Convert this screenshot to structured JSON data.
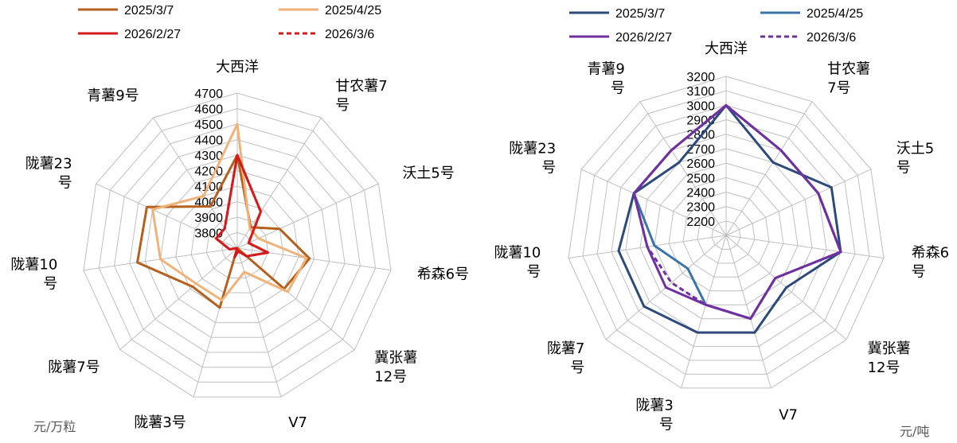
{
  "chart_data": [
    {
      "type": "radar",
      "unit_label": "元/万粒",
      "categories": [
        [
          "大西洋"
        ],
        [
          "甘农薯7",
          "号"
        ],
        [
          "沃土5号"
        ],
        [
          "希森6号"
        ],
        [
          "冀张薯",
          "12号"
        ],
        [
          "V7"
        ],
        [
          "陇薯3号"
        ],
        [
          "陇薯7号"
        ],
        [
          "陇薯10",
          "号"
        ],
        [
          "陇薯23",
          "号"
        ],
        [
          "青薯9号"
        ]
      ],
      "rlim": [
        3700,
        4700
      ],
      "ticks": [
        3800,
        3900,
        4000,
        4100,
        4200,
        4300,
        4400,
        4500,
        4600,
        4700
      ],
      "series": [
        {
          "name": "2025/3/7",
          "color": "#b5601c",
          "dash": false,
          "values": [
            4300,
            3860,
            4000,
            4170,
            4100,
            3700,
            4100,
            4080,
            4350,
            4340,
            4020
          ]
        },
        {
          "name": "2025/4/25",
          "color": "#f1b27a",
          "dash": false,
          "values": [
            4500,
            3850,
            3850,
            4150,
            4130,
            3860,
            4050,
            4050,
            4200,
            4300,
            4100
          ]
        },
        {
          "name": "2026/2/27",
          "color": "#d41a1a",
          "dash": false,
          "values": [
            4300,
            3980,
            3780,
            3900,
            3780,
            3720,
            3760,
            3700,
            3750,
            3850,
            3850
          ]
        },
        {
          "name": "2026/3/6",
          "color": "#d41a1a",
          "dash": true,
          "values": [
            4300,
            3980,
            3780,
            3900,
            3780,
            3720,
            3760,
            3700,
            3750,
            3850,
            3850
          ]
        }
      ]
    },
    {
      "type": "radar",
      "unit_label": "元/吨",
      "categories": [
        [
          "大西洋"
        ],
        [
          "甘农薯",
          "7号"
        ],
        [
          "沃土5",
          "号"
        ],
        [
          "希森6",
          "号"
        ],
        [
          "冀张薯",
          "12号"
        ],
        [
          "V7"
        ],
        [
          "陇薯3",
          "号"
        ],
        [
          "陇薯7",
          "号"
        ],
        [
          "陇薯10",
          "号"
        ],
        [
          "陇薯23",
          "号"
        ],
        [
          "青薯9",
          "号"
        ]
      ],
      "rlim": [
        2100,
        3200
      ],
      "ticks": [
        2200,
        2300,
        2400,
        2500,
        2600,
        2700,
        2800,
        2900,
        3000,
        3100,
        3200
      ],
      "series": [
        {
          "name": "2025/3/7",
          "color": "#2c4a7c",
          "dash": false,
          "values": [
            3000,
            2700,
            2900,
            2900,
            2650,
            2800,
            2800,
            2850,
            2850,
            2800,
            2700
          ]
        },
        {
          "name": "2025/4/25",
          "color": "#3a74a8",
          "dash": false,
          "values": [
            3000,
            2800,
            2800,
            2900,
            2550,
            2700,
            2600,
            2450,
            2600,
            2800,
            2800
          ]
        },
        {
          "name": "2026/2/27",
          "color": "#7030a0",
          "dash": false,
          "values": [
            3000,
            2800,
            2800,
            2900,
            2550,
            2700,
            2600,
            2650,
            2650,
            2800,
            2800
          ]
        },
        {
          "name": "2026/3/6",
          "color": "#7030a0",
          "dash": true,
          "values": [
            3000,
            2800,
            2800,
            2900,
            2550,
            2700,
            2600,
            2600,
            2650,
            2800,
            2800
          ]
        }
      ]
    }
  ]
}
